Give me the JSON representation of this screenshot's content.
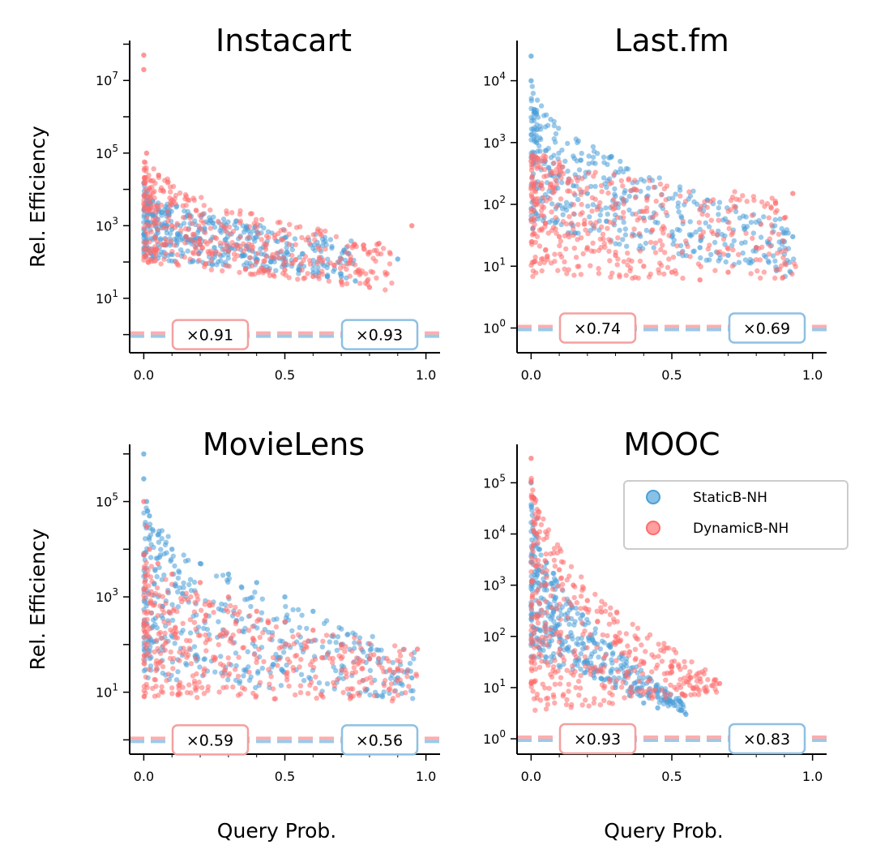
{
  "colors": {
    "static": "#4a9fd8",
    "dynamic": "#ff6b6b",
    "static_box": "#8fc0e3",
    "dynamic_box": "#f4a0a0",
    "baseline": "#c9868f"
  },
  "legend": {
    "placement": "upper-right of MOOC panel",
    "entries": [
      {
        "name": "StaticB-NH",
        "color": "#4a9fd8"
      },
      {
        "name": "DynamicB-NH",
        "color": "#ff6b6b"
      }
    ]
  },
  "chart_data": [
    {
      "type": "scatter",
      "title": "Instacart",
      "xlabel": "",
      "ylabel": "Rel. Efficiency",
      "log_y": true,
      "xlim": [
        -0.05,
        1.05
      ],
      "ylog_range": [
        -0.5,
        8.1
      ],
      "xticks": [
        "0.0",
        "0.5",
        "1.0"
      ],
      "xtick_values": [
        0,
        0.5,
        1
      ],
      "yticks": [
        {
          "exp": 1,
          "label": "10^1"
        },
        {
          "exp": 3,
          "label": "10^3"
        },
        {
          "exp": 5,
          "label": "10^5"
        },
        {
          "exp": 7,
          "label": "10^7"
        }
      ],
      "baseline": 1,
      "ratios": {
        "dynamic": "×0.91",
        "static": "×0.93"
      },
      "series": [
        {
          "name": "StaticB-NH",
          "x": [
            0.0,
            0.01,
            0.02,
            0.03,
            0.05,
            0.08,
            0.1,
            0.12,
            0.15,
            0.18,
            0.2,
            0.25,
            0.3,
            0.35,
            0.4,
            0.45,
            0.5,
            0.55,
            0.6,
            0.65,
            0.7,
            0.75,
            0.9
          ],
          "y": [
            15000,
            5000,
            3000,
            2000,
            1500,
            1000,
            800,
            600,
            500,
            400,
            300,
            250,
            200,
            150,
            120,
            100,
            80,
            60,
            50,
            40,
            40,
            30,
            120
          ],
          "spread": {
            "x": [
              0,
              0.75
            ],
            "logmax_at0": 4.2,
            "logmax_atend": 2.6,
            "logmin_at0": 2.1,
            "logmin_atend": 1.5
          }
        },
        {
          "name": "DynamicB-NH",
          "x": [
            0.0,
            0.0,
            0.01,
            0.02,
            0.05,
            0.1,
            0.15,
            0.2,
            0.3,
            0.4,
            0.5,
            0.6,
            0.7,
            0.8,
            0.95
          ],
          "y": [
            50000000,
            20000000,
            100000,
            10000,
            3000,
            1000,
            500,
            300,
            200,
            100,
            60,
            40,
            30,
            20,
            1000
          ],
          "spread": {
            "x": [
              0,
              0.88
            ],
            "logmax_at0": 5.1,
            "logmax_atend": 2.5,
            "logmin_at0": 2.0,
            "logmin_atend": 1.2
          }
        }
      ]
    },
    {
      "type": "scatter",
      "title": "Last.fm",
      "xlabel": "",
      "ylabel": "",
      "log_y": true,
      "xlim": [
        -0.05,
        1.05
      ],
      "ylog_range": [
        -0.4,
        4.65
      ],
      "xticks": [
        "0.0",
        "0.5",
        "1.0"
      ],
      "xtick_values": [
        0,
        0.5,
        1
      ],
      "yticks": [
        {
          "exp": 0,
          "label": "10^0"
        },
        {
          "exp": 1,
          "label": "10^1"
        },
        {
          "exp": 2,
          "label": "10^2"
        },
        {
          "exp": 3,
          "label": "10^3"
        },
        {
          "exp": 4,
          "label": "10^4"
        }
      ],
      "baseline": 1,
      "ratios": {
        "dynamic": "×0.74",
        "static": "×0.69"
      },
      "series": [
        {
          "name": "StaticB-NH",
          "x": [
            0.0,
            0.0,
            0.01,
            0.02,
            0.05,
            0.1,
            0.15,
            0.2,
            0.3,
            0.4,
            0.5,
            0.6,
            0.7,
            0.8,
            0.9,
            0.93
          ],
          "y": [
            25000,
            10000,
            3000,
            1000,
            500,
            300,
            200,
            150,
            100,
            60,
            30,
            20,
            15,
            20,
            25,
            30
          ],
          "spread": {
            "x": [
              0,
              0.94
            ],
            "logmax_at0": 4.1,
            "logmax_atend": 1.7,
            "logmin_at0": 1.6,
            "logmin_atend": 0.8
          }
        },
        {
          "name": "DynamicB-NH",
          "x": [
            0.0,
            0.01,
            0.02,
            0.05,
            0.1,
            0.2,
            0.3,
            0.4,
            0.5,
            0.6,
            0.7,
            0.8,
            0.9,
            0.93
          ],
          "y": [
            500,
            200,
            100,
            50,
            30,
            20,
            15,
            10,
            8,
            6,
            8,
            20,
            60,
            150
          ],
          "spread": {
            "x": [
              0,
              0.94
            ],
            "logmax_at0": 3.0,
            "logmax_atend": 2.1,
            "logmin_at0": 0.8,
            "logmin_atend": 0.8
          }
        }
      ]
    },
    {
      "type": "scatter",
      "title": "MovieLens",
      "xlabel": "Query Prob.",
      "ylabel": "Rel. Efficiency",
      "log_y": true,
      "xlim": [
        -0.05,
        1.05
      ],
      "ylog_range": [
        -0.3,
        6.2
      ],
      "xticks": [
        "0.0",
        "0.5",
        "1.0"
      ],
      "xtick_values": [
        0,
        0.5,
        1
      ],
      "yticks": [
        {
          "exp": 1,
          "label": "10^1"
        },
        {
          "exp": 3,
          "label": "10^3"
        },
        {
          "exp": 5,
          "label": "10^5"
        }
      ],
      "baseline": 1,
      "ratios": {
        "dynamic": "×0.59",
        "static": "×0.56"
      },
      "series": [
        {
          "name": "StaticB-NH",
          "x": [
            0.0,
            0.0,
            0.01,
            0.02,
            0.05,
            0.1,
            0.2,
            0.3,
            0.4,
            0.5,
            0.6,
            0.7,
            0.8,
            0.9,
            0.95
          ],
          "y": [
            1000000,
            300000,
            100000,
            50000,
            20000,
            10000,
            5000,
            3000,
            2000,
            1000,
            500,
            100,
            50,
            20,
            20
          ],
          "spread": {
            "x": [
              0,
              0.96
            ],
            "logmax_at0": 5.3,
            "logmax_atend": 1.9,
            "logmin_at0": 1.3,
            "logmin_atend": 0.8
          }
        },
        {
          "name": "DynamicB-NH",
          "x": [
            0.0,
            0.01,
            0.02,
            0.05,
            0.1,
            0.2,
            0.3,
            0.4,
            0.5,
            0.6,
            0.7,
            0.8,
            0.9,
            0.97
          ],
          "y": [
            100000,
            30000,
            10000,
            5000,
            3000,
            2000,
            1000,
            500,
            300,
            200,
            100,
            50,
            30,
            80
          ],
          "spread": {
            "x": [
              0,
              0.97
            ],
            "logmax_at0": 4.0,
            "logmax_atend": 1.9,
            "logmin_at0": 0.9,
            "logmin_atend": 0.8
          }
        }
      ]
    },
    {
      "type": "scatter",
      "title": "MOOC",
      "xlabel": "Query Prob.",
      "ylabel": "",
      "log_y": true,
      "xlim": [
        -0.05,
        1.05
      ],
      "ylog_range": [
        -0.3,
        5.75
      ],
      "xticks": [
        "0.0",
        "0.5",
        "1.0"
      ],
      "xtick_values": [
        0,
        0.5,
        1
      ],
      "yticks": [
        {
          "exp": 0,
          "label": "10^0"
        },
        {
          "exp": 1,
          "label": "10^1"
        },
        {
          "exp": 2,
          "label": "10^2"
        },
        {
          "exp": 3,
          "label": "10^3"
        },
        {
          "exp": 4,
          "label": "10^4"
        },
        {
          "exp": 5,
          "label": "10^5"
        }
      ],
      "baseline": 1,
      "ratios": {
        "dynamic": "×0.93",
        "static": "×0.83"
      },
      "series": [
        {
          "name": "StaticB-NH",
          "x": [
            0.0,
            0.01,
            0.02,
            0.03,
            0.05,
            0.08,
            0.1,
            0.15,
            0.2,
            0.25,
            0.3,
            0.35,
            0.4,
            0.45,
            0.55
          ],
          "y": [
            100000,
            50000,
            20000,
            5000,
            1000,
            300,
            100,
            50,
            30,
            15,
            10,
            7,
            5,
            4,
            3
          ],
          "spread": {
            "x": [
              0,
              0.55
            ],
            "logmax_at0": 4.8,
            "logmax_atend": 0.7,
            "logmin_at0": 1.6,
            "logmin_atend": 0.5
          }
        },
        {
          "name": "DynamicB-NH",
          "x": [
            0.0,
            0.01,
            0.02,
            0.05,
            0.1,
            0.15,
            0.2,
            0.25,
            0.3,
            0.35,
            0.4,
            0.5,
            0.6,
            0.67
          ],
          "y": [
            300000,
            50000,
            10000,
            3000,
            2000,
            1000,
            500,
            300,
            100,
            50,
            30,
            20,
            15,
            12
          ],
          "spread": {
            "x": [
              0,
              0.67
            ],
            "logmax_at0": 5.4,
            "logmax_atend": 1.2,
            "logmin_at0": 0.5,
            "logmin_atend": 0.9
          }
        }
      ]
    }
  ]
}
